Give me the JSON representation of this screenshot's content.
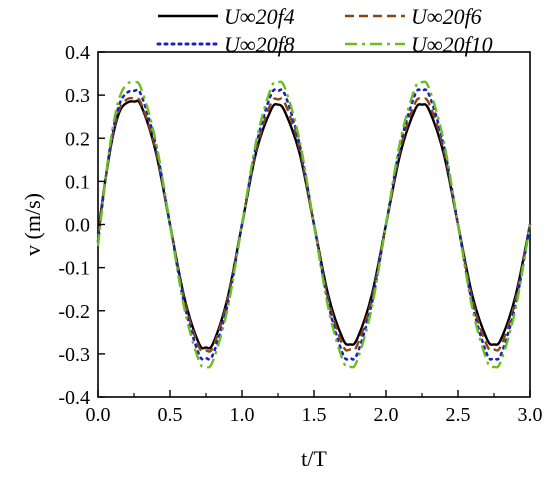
{
  "chart_data": {
    "type": "line",
    "title": "",
    "xlabel": "t/T",
    "ylabel": "v (m/s)",
    "xlim": [
      0.0,
      3.0
    ],
    "ylim": [
      -0.4,
      0.4
    ],
    "x_ticks": [
      0.0,
      0.5,
      1.0,
      1.5,
      2.0,
      2.5,
      3.0
    ],
    "x_tick_labels": [
      "0.0",
      "0.5",
      "1.0",
      "1.5",
      "2.0",
      "2.5",
      "3.0"
    ],
    "y_ticks": [
      -0.4,
      -0.3,
      -0.2,
      -0.1,
      0.0,
      0.1,
      0.2,
      0.3,
      0.4
    ],
    "y_tick_labels": [
      "-0.4",
      "-0.3",
      "-0.2",
      "-0.1",
      "0.0",
      "0.1",
      "0.2",
      "0.3",
      "0.4"
    ],
    "grid": false,
    "legend_position": "top",
    "series": [
      {
        "name": "U∞20f4",
        "color": "#000000",
        "style": "solid",
        "x": [
          0.0,
          0.05,
          0.1,
          0.15,
          0.2,
          0.25,
          0.3,
          0.4,
          0.5,
          0.6,
          0.7,
          0.75,
          0.8,
          0.9,
          1.0,
          1.1,
          1.2,
          1.25,
          1.3,
          1.4,
          1.5,
          1.6,
          1.7,
          1.75,
          1.8,
          1.9,
          2.0,
          2.1,
          2.2,
          2.25,
          2.3,
          2.4,
          2.5,
          2.6,
          2.7,
          2.75,
          2.8,
          2.9,
          3.0
        ],
        "y": [
          -0.02,
          0.1,
          0.2,
          0.262,
          0.282,
          0.285,
          0.275,
          0.17,
          0.0,
          -0.17,
          -0.275,
          -0.285,
          -0.275,
          -0.17,
          0.0,
          0.17,
          0.265,
          0.278,
          0.26,
          0.165,
          0.0,
          -0.165,
          -0.265,
          -0.278,
          -0.265,
          -0.165,
          0.0,
          0.165,
          0.265,
          0.278,
          0.265,
          0.165,
          0.0,
          -0.165,
          -0.265,
          -0.278,
          -0.265,
          -0.165,
          0.0
        ]
      },
      {
        "name": "U∞20f6",
        "color": "#8b4513",
        "style": "dashed",
        "x": [
          0.0,
          0.05,
          0.1,
          0.15,
          0.2,
          0.25,
          0.3,
          0.4,
          0.5,
          0.6,
          0.7,
          0.75,
          0.8,
          0.9,
          1.0,
          1.1,
          1.2,
          1.25,
          1.3,
          1.4,
          1.5,
          1.6,
          1.7,
          1.75,
          1.8,
          1.9,
          2.0,
          2.1,
          2.2,
          2.25,
          2.3,
          2.4,
          2.5,
          2.6,
          2.7,
          2.75,
          2.8,
          2.9,
          3.0
        ],
        "y": [
          -0.03,
          0.1,
          0.205,
          0.268,
          0.29,
          0.292,
          0.28,
          0.175,
          0.0,
          -0.175,
          -0.283,
          -0.292,
          -0.283,
          -0.175,
          0.0,
          0.175,
          0.28,
          0.29,
          0.28,
          0.175,
          0.0,
          -0.175,
          -0.28,
          -0.29,
          -0.28,
          -0.175,
          0.0,
          0.175,
          0.28,
          0.29,
          0.28,
          0.175,
          0.0,
          -0.175,
          -0.28,
          -0.29,
          -0.28,
          -0.175,
          0.0
        ]
      },
      {
        "name": "U∞20f8",
        "color": "#1f1fbf",
        "style": "dotted",
        "x": [
          0.0,
          0.05,
          0.1,
          0.15,
          0.2,
          0.25,
          0.3,
          0.4,
          0.5,
          0.6,
          0.7,
          0.75,
          0.8,
          0.9,
          1.0,
          1.1,
          1.2,
          1.25,
          1.3,
          1.4,
          1.5,
          1.6,
          1.7,
          1.75,
          1.8,
          1.9,
          2.0,
          2.1,
          2.2,
          2.25,
          2.3,
          2.4,
          2.5,
          2.6,
          2.7,
          2.75,
          2.8,
          2.9,
          3.0
        ],
        "y": [
          -0.04,
          0.1,
          0.21,
          0.28,
          0.305,
          0.31,
          0.3,
          0.185,
          0.0,
          -0.185,
          -0.3,
          -0.31,
          -0.3,
          -0.185,
          0.0,
          0.185,
          0.3,
          0.31,
          0.3,
          0.185,
          0.0,
          -0.185,
          -0.3,
          -0.31,
          -0.3,
          -0.185,
          0.0,
          0.185,
          0.3,
          0.31,
          0.3,
          0.185,
          0.0,
          -0.185,
          -0.3,
          -0.31,
          -0.3,
          -0.185,
          0.0
        ]
      },
      {
        "name": "U∞20f10",
        "color": "#6abf1f",
        "style": "dashdot",
        "x": [
          0.0,
          0.05,
          0.1,
          0.15,
          0.2,
          0.25,
          0.3,
          0.4,
          0.5,
          0.6,
          0.7,
          0.75,
          0.8,
          0.9,
          1.0,
          1.1,
          1.2,
          1.25,
          1.3,
          1.4,
          1.5,
          1.6,
          1.7,
          1.75,
          1.8,
          1.9,
          2.0,
          2.1,
          2.2,
          2.25,
          2.3,
          2.4,
          2.5,
          2.6,
          2.7,
          2.75,
          2.8,
          2.9,
          3.0
        ],
        "y": [
          -0.05,
          0.1,
          0.22,
          0.295,
          0.325,
          0.33,
          0.315,
          0.195,
          0.0,
          -0.195,
          -0.315,
          -0.33,
          -0.315,
          -0.195,
          0.0,
          0.195,
          0.315,
          0.33,
          0.315,
          0.195,
          0.0,
          -0.195,
          -0.315,
          -0.33,
          -0.315,
          -0.195,
          0.0,
          0.195,
          0.315,
          0.33,
          0.315,
          0.195,
          0.0,
          -0.195,
          -0.315,
          -0.33,
          -0.315,
          -0.195,
          0.0
        ]
      }
    ]
  }
}
